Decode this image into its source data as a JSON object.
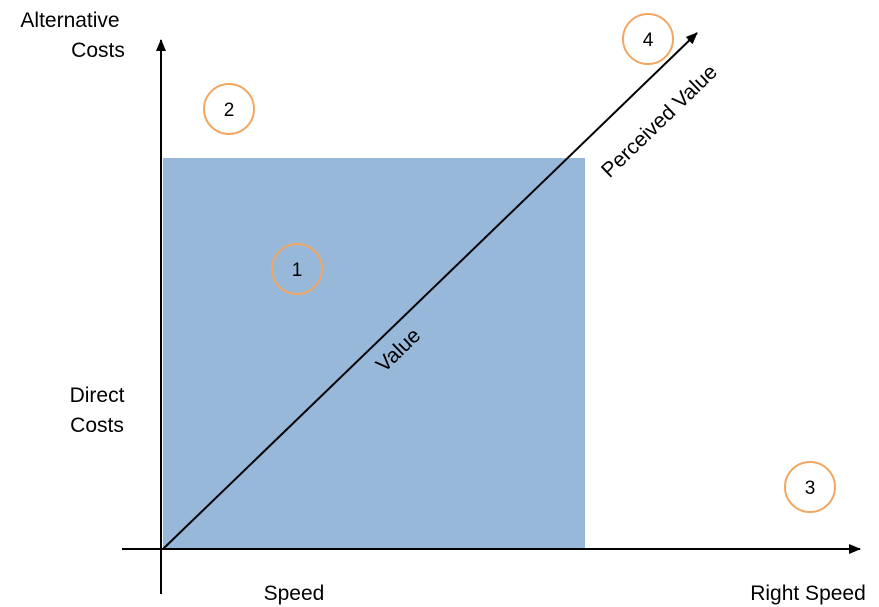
{
  "labels": {
    "y_axis_top_line1": "Alternative",
    "y_axis_top_line2": "Costs",
    "y_axis_mid_line1": "Direct",
    "y_axis_mid_line2": "Costs",
    "x_axis_left": "Speed",
    "x_axis_right": "Right Speed",
    "diagonal_value": "Value",
    "arrow_perceived_value": "Perceived Value"
  },
  "markers": [
    "1",
    "2",
    "3",
    "4"
  ],
  "colors": {
    "region_fill": "#98b8da",
    "marker_circle": "#f2a661",
    "axis": "#000000"
  }
}
